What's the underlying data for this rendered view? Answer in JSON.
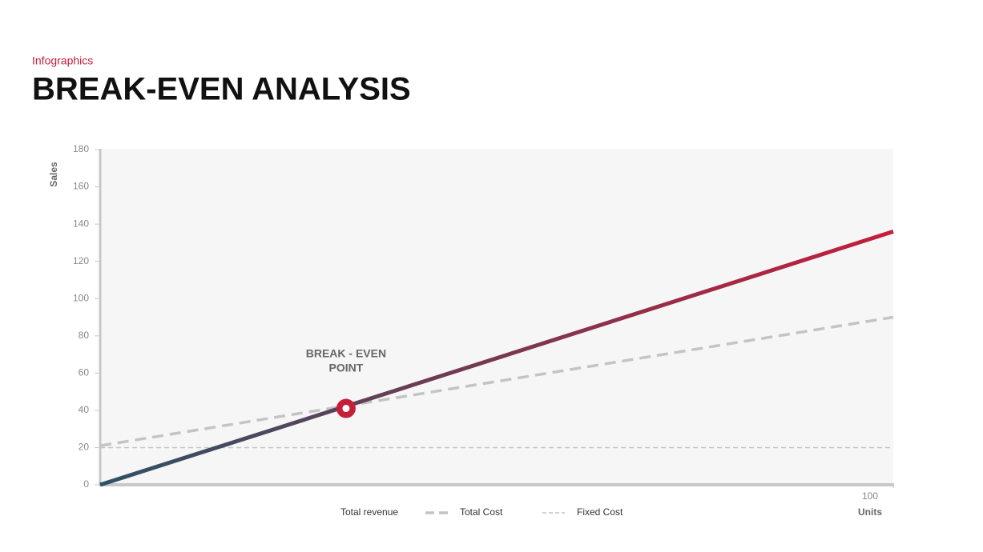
{
  "header": {
    "kicker": "Infographics",
    "title": "BREAK-EVEN ANALYSIS"
  },
  "chart_data": {
    "type": "line",
    "x": [
      0,
      100
    ],
    "series": [
      {
        "name": "Total revenue",
        "color": "#c41e3a",
        "gradient_from": "#2e5266",
        "linestyle": "solid",
        "linewidth": 5,
        "values": [
          0,
          136
        ]
      },
      {
        "name": "Total Cost",
        "color": "#c4c4c4",
        "linestyle": "dashed",
        "linewidth": 3.5,
        "values": [
          21,
          90
        ]
      },
      {
        "name": "Fixed Cost",
        "color": "#c4c4c4",
        "linestyle": "dashed",
        "linewidth": 1.5,
        "values": [
          20,
          20
        ]
      }
    ],
    "xlim": [
      0,
      100
    ],
    "xticks": [
      100
    ],
    "ylim": [
      0,
      180
    ],
    "yticks": [
      0,
      20,
      40,
      60,
      80,
      100,
      120,
      140,
      160,
      180
    ],
    "xlabel": "Units",
    "ylabel": "Sales",
    "annotation": {
      "text": [
        "BREAK  - EVEN",
        "POINT"
      ],
      "x": 31,
      "y": 41,
      "color": "#c41e3a"
    },
    "legend": "bottom"
  }
}
